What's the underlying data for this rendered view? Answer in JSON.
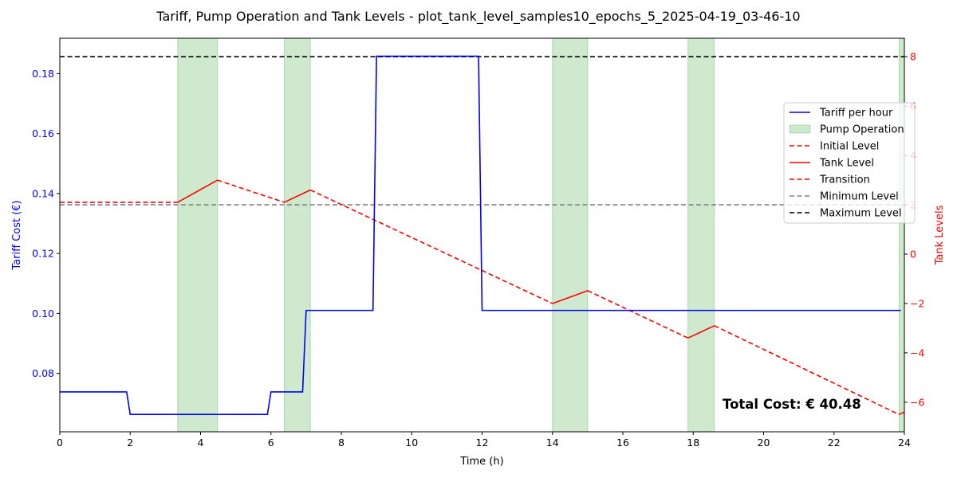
{
  "chart_data": {
    "type": "line",
    "title": "Tariff, Pump Operation and Tank Levels - plot_tank_level_samples10_epochs_5_2025-04-19_03-46-10",
    "xlabel": "Time (h)",
    "ylabel_left": "Tariff Cost (€)",
    "ylabel_right": "Tank Levels",
    "xlim": [
      0,
      24
    ],
    "ylim_left": [
      0.0605,
      0.1918
    ],
    "ylim_right": [
      -7.2,
      8.75
    ],
    "x_ticks": [
      "0",
      "2",
      "4",
      "6",
      "8",
      "10",
      "12",
      "14",
      "16",
      "18",
      "20",
      "22",
      "24"
    ],
    "y_left_ticks": [
      "0.08",
      "0.10",
      "0.12",
      "0.14",
      "0.16",
      "0.18"
    ],
    "y_right_ticks": [
      "−6",
      "−4",
      "−2",
      "0",
      "2",
      "4",
      "6",
      "8"
    ],
    "grid": false,
    "legend_position": "center-right",
    "series": [
      {
        "name": "Tariff per hour",
        "color": "#0000ff",
        "style": "solid",
        "axis": "left",
        "points": [
          [
            0,
            0.0738
          ],
          [
            1.9,
            0.0738
          ],
          [
            2.0,
            0.0663
          ],
          [
            5.9,
            0.0663
          ],
          [
            6.0,
            0.0738
          ],
          [
            6.9,
            0.0738
          ],
          [
            7.0,
            0.101
          ],
          [
            8.9,
            0.101
          ],
          [
            9.0,
            0.1858
          ],
          [
            11.9,
            0.1858
          ],
          [
            12.0,
            0.101
          ],
          [
            23.9,
            0.101
          ]
        ]
      },
      {
        "name": "Pump Operation",
        "color": "#2ca02c",
        "style": "span",
        "spans": [
          [
            3.35,
            4.48
          ],
          [
            6.38,
            7.12
          ],
          [
            14.0,
            15.0
          ],
          [
            17.85,
            18.6
          ],
          [
            23.85,
            24.0
          ]
        ]
      },
      {
        "name": "Initial Level",
        "color": "#ff0000",
        "style": "dashed",
        "axis": "right",
        "points": [
          [
            0,
            2.1
          ],
          [
            3.35,
            2.1
          ]
        ]
      },
      {
        "name": "Tank Level",
        "color": "#ff0000",
        "style": "solid",
        "axis": "right",
        "points": [
          [
            3.35,
            2.1
          ],
          [
            4.48,
            3.0
          ],
          [
            6.38,
            2.1
          ],
          [
            7.12,
            2.6
          ],
          [
            14.0,
            -2.0
          ],
          [
            15.0,
            -1.48
          ],
          [
            17.85,
            -3.4
          ],
          [
            18.6,
            -2.9
          ],
          [
            23.85,
            -6.5
          ],
          [
            24.0,
            -6.4
          ]
        ]
      },
      {
        "name": "Transition",
        "color": "#ff0000",
        "style": "dashed",
        "axis": "right",
        "points": [
          [
            3.35,
            2.1
          ],
          [
            4.48,
            3.0
          ],
          [
            6.38,
            2.1
          ],
          [
            7.12,
            2.6
          ],
          [
            14.0,
            -2.0
          ],
          [
            15.0,
            -1.48
          ],
          [
            17.85,
            -3.4
          ],
          [
            18.6,
            -2.9
          ],
          [
            23.85,
            -6.5
          ],
          [
            24.0,
            -6.4
          ]
        ]
      },
      {
        "name": "Minimum Level",
        "color": "#808080",
        "style": "dashed",
        "axis": "right",
        "value": 2.0
      },
      {
        "name": "Maximum Level",
        "color": "#000000",
        "style": "dashed",
        "axis": "right",
        "value": 8.0
      }
    ],
    "annotation": "Total Cost: € 40.48"
  }
}
